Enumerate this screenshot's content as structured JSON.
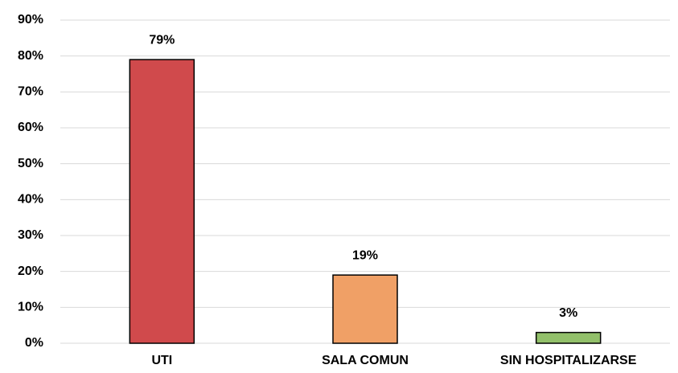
{
  "chart_data": {
    "type": "bar",
    "categories": [
      "UTI",
      "SALA COMUN",
      "SIN HOSPITALIZARSE"
    ],
    "values": [
      79,
      19,
      3
    ],
    "value_labels": [
      "79%",
      "19%",
      "3%"
    ],
    "colors": [
      "#d04a4c",
      "#f0a066",
      "#92c06a"
    ],
    "ylim": [
      0,
      90
    ],
    "yticks": [
      {
        "value": 0,
        "label": "0%"
      },
      {
        "value": 10,
        "label": "10%"
      },
      {
        "value": 20,
        "label": "20%"
      },
      {
        "value": 30,
        "label": "30%"
      },
      {
        "value": 40,
        "label": "40%"
      },
      {
        "value": 50,
        "label": "50%"
      },
      {
        "value": 60,
        "label": "60%"
      },
      {
        "value": 70,
        "label": "70%"
      },
      {
        "value": 80,
        "label": "80%"
      },
      {
        "value": 90,
        "label": "90%"
      }
    ],
    "grid": true
  }
}
